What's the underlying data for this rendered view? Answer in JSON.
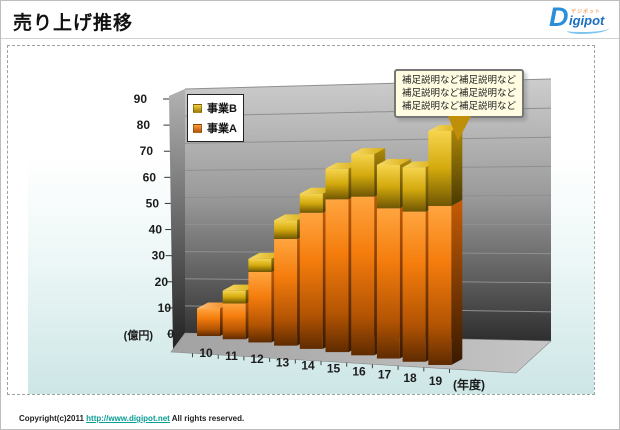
{
  "header": {
    "title": "売り上げ推移"
  },
  "logo": {
    "d": "D",
    "rest": "igipot",
    "ruby": "デジポット"
  },
  "chart_data": {
    "type": "bar",
    "stacked": true,
    "effect": "3d",
    "title": "売り上げ推移",
    "categories": [
      "10",
      "11",
      "12",
      "13",
      "14",
      "15",
      "16",
      "17",
      "18",
      "19"
    ],
    "series": [
      {
        "name": "事業A",
        "color": "#e8720e",
        "color_light": "#ff9a3c",
        "color_dark": "#b4560a",
        "values": [
          11,
          14,
          27,
          40,
          50,
          55,
          56,
          52,
          51,
          53
        ]
      },
      {
        "name": "事業B",
        "color": "#d8ac0c",
        "color_light": "#f2cf3e",
        "color_dark": "#a07f06",
        "values": [
          0,
          5,
          5,
          7,
          7,
          11,
          15,
          15,
          15,
          25
        ]
      }
    ],
    "xlabel": "(年度)",
    "ylabel": "(億円)",
    "ylim": [
      0,
      90
    ],
    "ytick_step": 10,
    "grid": true,
    "legend_position": "top-left",
    "legend_order": [
      "事業B",
      "事業A"
    ]
  },
  "callout": {
    "lines": [
      "補足説明など補足説明など",
      "補足説明など補足説明など",
      "補足説明など補足説明など"
    ]
  },
  "footer": {
    "prefix": "Copyright(c)2011",
    "url": "http://www.digipot.net",
    "suffix": "All rights reserved."
  }
}
